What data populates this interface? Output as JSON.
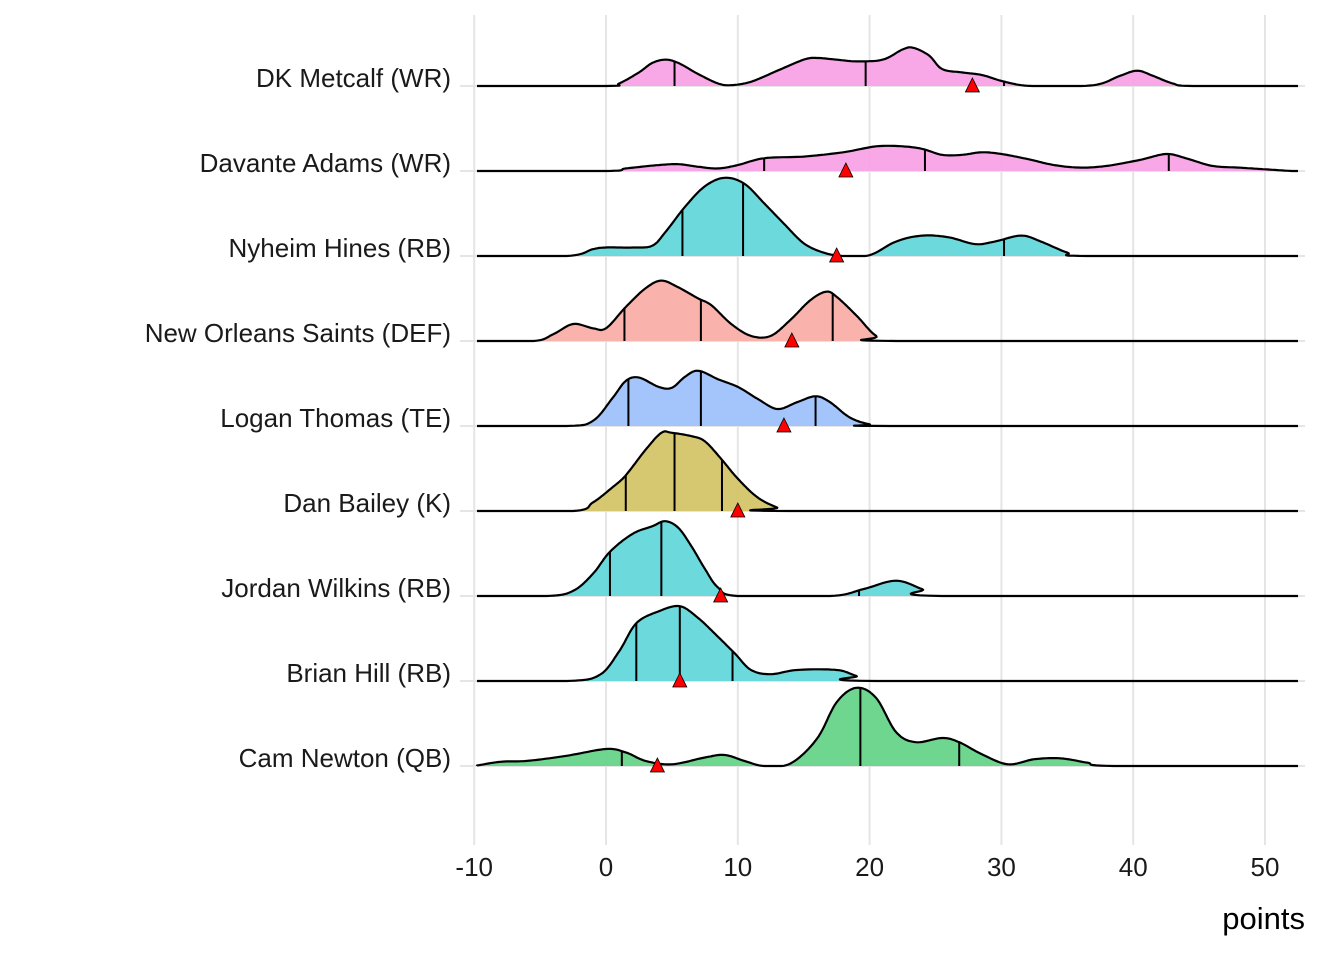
{
  "chart_data": {
    "type": "ridgeline",
    "title": "",
    "xlabel": "points",
    "ylabel": "",
    "xlim": [
      -10,
      52.5
    ],
    "xticks": [
      -10,
      0,
      10,
      20,
      30,
      40,
      50
    ],
    "grid": true,
    "legend": "none",
    "marker_color": "#FF0000",
    "series": [
      {
        "name": "DK Metcalf (WR)",
        "color": "#F8A2E6",
        "density": [
          [
            -10,
            0
          ],
          [
            0,
            0
          ],
          [
            1,
            0.03
          ],
          [
            2.5,
            0.16
          ],
          [
            3.5,
            0.27
          ],
          [
            4.5,
            0.31
          ],
          [
            5.5,
            0.27
          ],
          [
            7,
            0.14
          ],
          [
            8.5,
            0.03
          ],
          [
            9.5,
            0.01
          ],
          [
            11,
            0.05
          ],
          [
            13,
            0.18
          ],
          [
            15,
            0.31
          ],
          [
            16,
            0.33
          ],
          [
            17.5,
            0.31
          ],
          [
            19,
            0.29
          ],
          [
            21,
            0.31
          ],
          [
            22.5,
            0.43
          ],
          [
            23.3,
            0.45
          ],
          [
            24.5,
            0.36
          ],
          [
            25.5,
            0.2
          ],
          [
            27,
            0.16
          ],
          [
            28.5,
            0.13
          ],
          [
            30,
            0.06
          ],
          [
            31.5,
            0.01
          ],
          [
            33,
            0
          ],
          [
            37,
            0.01
          ],
          [
            39,
            0.12
          ],
          [
            40.3,
            0.18
          ],
          [
            41.5,
            0.12
          ],
          [
            43,
            0.03
          ],
          [
            44.5,
            0
          ],
          [
            52,
            0
          ]
        ],
        "quantiles": [
          5.2,
          19.7,
          30.2
        ],
        "actual": 27.8
      },
      {
        "name": "Davante Adams (WR)",
        "color": "#F8A2E6",
        "density": [
          [
            -10,
            0
          ],
          [
            0,
            0
          ],
          [
            1.5,
            0.03
          ],
          [
            4,
            0.07
          ],
          [
            5.5,
            0.08
          ],
          [
            7,
            0.05
          ],
          [
            8.5,
            0.03
          ],
          [
            10,
            0.07
          ],
          [
            12,
            0.15
          ],
          [
            15,
            0.17
          ],
          [
            18,
            0.22
          ],
          [
            20.5,
            0.29
          ],
          [
            22.5,
            0.29
          ],
          [
            24,
            0.26
          ],
          [
            25.5,
            0.19
          ],
          [
            27,
            0.19
          ],
          [
            28.5,
            0.22
          ],
          [
            30,
            0.2
          ],
          [
            32,
            0.14
          ],
          [
            34,
            0.07
          ],
          [
            36,
            0.04
          ],
          [
            38,
            0.06
          ],
          [
            40.5,
            0.13
          ],
          [
            42.5,
            0.2
          ],
          [
            44,
            0.15
          ],
          [
            46,
            0.06
          ],
          [
            48,
            0.04
          ],
          [
            50,
            0.02
          ],
          [
            52,
            0
          ]
        ],
        "quantiles": [
          12.0,
          24.2,
          42.7
        ],
        "actual": 18.2
      },
      {
        "name": "Nyheim Hines (RB)",
        "color": "#64D8DA",
        "density": [
          [
            -10,
            0
          ],
          [
            -3,
            0
          ],
          [
            -1,
            0.08
          ],
          [
            0,
            0.1
          ],
          [
            2,
            0.1
          ],
          [
            3.5,
            0.12
          ],
          [
            4.5,
            0.28
          ],
          [
            6,
            0.58
          ],
          [
            7.5,
            0.82
          ],
          [
            9,
            0.92
          ],
          [
            10.5,
            0.85
          ],
          [
            12,
            0.62
          ],
          [
            13.5,
            0.38
          ],
          [
            15,
            0.15
          ],
          [
            16.5,
            0.04
          ],
          [
            18,
            0
          ],
          [
            20,
            0.01
          ],
          [
            22,
            0.17
          ],
          [
            24,
            0.24
          ],
          [
            26,
            0.22
          ],
          [
            28,
            0.14
          ],
          [
            29.5,
            0.17
          ],
          [
            31.5,
            0.24
          ],
          [
            33,
            0.17
          ],
          [
            35,
            0.04
          ],
          [
            36.5,
            0
          ],
          [
            52,
            0
          ]
        ],
        "quantiles": [
          5.8,
          10.4,
          30.2
        ],
        "actual": 17.5
      },
      {
        "name": "New Orleans Saints (DEF)",
        "color": "#F9AEA8",
        "density": [
          [
            -10,
            0
          ],
          [
            -5.5,
            0
          ],
          [
            -4,
            0.08
          ],
          [
            -2.5,
            0.2
          ],
          [
            -1,
            0.15
          ],
          [
            0,
            0.15
          ],
          [
            1.5,
            0.4
          ],
          [
            3,
            0.62
          ],
          [
            4.2,
            0.71
          ],
          [
            5.5,
            0.63
          ],
          [
            7,
            0.5
          ],
          [
            8,
            0.42
          ],
          [
            9.5,
            0.2
          ],
          [
            11,
            0.06
          ],
          [
            12.5,
            0.06
          ],
          [
            14,
            0.25
          ],
          [
            15.5,
            0.48
          ],
          [
            16.7,
            0.58
          ],
          [
            17.5,
            0.52
          ],
          [
            19,
            0.3
          ],
          [
            20.5,
            0.06
          ],
          [
            22,
            0
          ],
          [
            52,
            0
          ]
        ],
        "quantiles": [
          1.4,
          7.2,
          17.2
        ],
        "actual": 14.1
      },
      {
        "name": "Logan Thomas (TE)",
        "color": "#9FC2FC",
        "density": [
          [
            -10,
            0
          ],
          [
            -3,
            0
          ],
          [
            -1,
            0.06
          ],
          [
            0.5,
            0.33
          ],
          [
            1.5,
            0.53
          ],
          [
            2.5,
            0.57
          ],
          [
            4,
            0.46
          ],
          [
            5,
            0.45
          ],
          [
            6,
            0.58
          ],
          [
            7,
            0.65
          ],
          [
            8.5,
            0.55
          ],
          [
            10,
            0.46
          ],
          [
            11.5,
            0.32
          ],
          [
            13,
            0.2
          ],
          [
            14.5,
            0.28
          ],
          [
            15.9,
            0.35
          ],
          [
            17,
            0.28
          ],
          [
            18.5,
            0.1
          ],
          [
            20,
            0.02
          ],
          [
            21.5,
            0
          ],
          [
            52,
            0
          ]
        ],
        "quantiles": [
          1.7,
          7.2,
          15.9
        ],
        "actual": 13.5
      },
      {
        "name": "Dan Bailey (K)",
        "color": "#D4C469",
        "density": [
          [
            -10,
            0
          ],
          [
            -2.5,
            0
          ],
          [
            -1,
            0.1
          ],
          [
            0.5,
            0.28
          ],
          [
            1.5,
            0.42
          ],
          [
            3,
            0.72
          ],
          [
            4.2,
            0.92
          ],
          [
            5,
            0.92
          ],
          [
            6.5,
            0.88
          ],
          [
            7.5,
            0.82
          ],
          [
            8.7,
            0.62
          ],
          [
            10,
            0.38
          ],
          [
            11.5,
            0.16
          ],
          [
            13,
            0.04
          ],
          [
            14,
            0
          ],
          [
            52,
            0
          ]
        ],
        "quantiles": [
          1.5,
          5.2,
          8.8
        ],
        "actual": 10.0
      },
      {
        "name": "Jordan Wilkins (RB)",
        "color": "#64D8DA",
        "density": [
          [
            -10,
            0
          ],
          [
            -4.5,
            0
          ],
          [
            -2.5,
            0.06
          ],
          [
            -1,
            0.26
          ],
          [
            0.3,
            0.52
          ],
          [
            2,
            0.73
          ],
          [
            3.5,
            0.82
          ],
          [
            4.5,
            0.88
          ],
          [
            5.5,
            0.8
          ],
          [
            6.5,
            0.58
          ],
          [
            7.5,
            0.32
          ],
          [
            8.5,
            0.1
          ],
          [
            10,
            0
          ],
          [
            17,
            0
          ],
          [
            19.5,
            0.08
          ],
          [
            22,
            0.18
          ],
          [
            24,
            0.08
          ],
          [
            25.5,
            0
          ],
          [
            52,
            0
          ]
        ],
        "quantiles": [
          0.3,
          4.2,
          19.2
        ],
        "actual": 8.7
      },
      {
        "name": "Brian Hill (RB)",
        "color": "#64D8DA",
        "density": [
          [
            -10,
            0
          ],
          [
            -3,
            0
          ],
          [
            -0.5,
            0.07
          ],
          [
            1,
            0.35
          ],
          [
            2.3,
            0.68
          ],
          [
            4,
            0.82
          ],
          [
            5.6,
            0.88
          ],
          [
            7,
            0.74
          ],
          [
            8.5,
            0.52
          ],
          [
            9.8,
            0.32
          ],
          [
            11,
            0.13
          ],
          [
            12.5,
            0.08
          ],
          [
            14.5,
            0.13
          ],
          [
            17.5,
            0.13
          ],
          [
            19,
            0.06
          ],
          [
            20.5,
            0
          ],
          [
            52,
            0
          ]
        ],
        "quantiles": [
          2.3,
          5.6,
          9.6
        ],
        "actual": 5.6
      },
      {
        "name": "Cam Newton (QB)",
        "color": "#66D488",
        "density": [
          [
            -10,
            0
          ],
          [
            -8,
            0.05
          ],
          [
            -6,
            0.06
          ],
          [
            -3,
            0.12
          ],
          [
            0,
            0.2
          ],
          [
            1.5,
            0.16
          ],
          [
            3,
            0.06
          ],
          [
            5,
            0.02
          ],
          [
            7.5,
            0.1
          ],
          [
            9,
            0.13
          ],
          [
            10.5,
            0.06
          ],
          [
            12,
            0
          ],
          [
            14,
            0.03
          ],
          [
            16,
            0.32
          ],
          [
            17.5,
            0.75
          ],
          [
            19,
            0.92
          ],
          [
            20.5,
            0.8
          ],
          [
            22,
            0.4
          ],
          [
            23.5,
            0.28
          ],
          [
            25.5,
            0.33
          ],
          [
            26.8,
            0.28
          ],
          [
            28.5,
            0.14
          ],
          [
            30.5,
            0.02
          ],
          [
            32.5,
            0.08
          ],
          [
            34.5,
            0.09
          ],
          [
            36.5,
            0.04
          ],
          [
            38.5,
            0
          ],
          [
            52,
            0
          ]
        ],
        "quantiles": [
          1.2,
          19.3,
          26.8
        ],
        "actual": 3.9
      }
    ]
  }
}
